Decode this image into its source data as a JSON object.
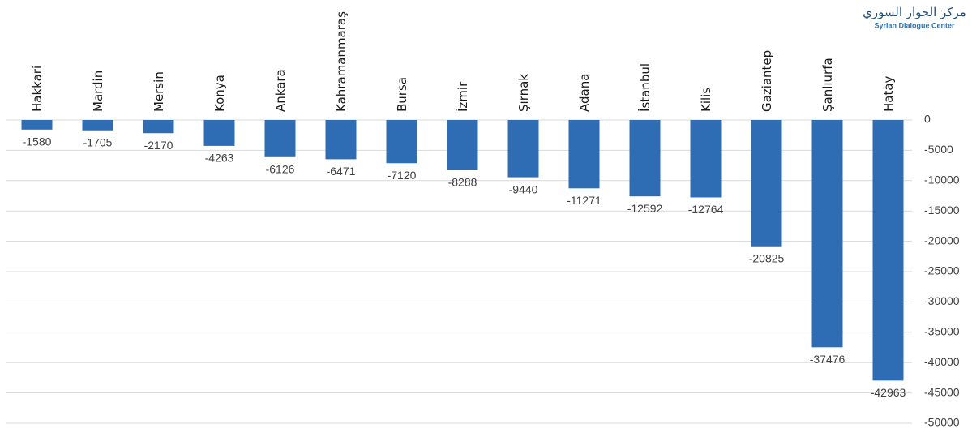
{
  "chart_data": {
    "type": "bar",
    "logo_text": [
      "مركز الحوار السوري",
      "Syrian Dialogue Center"
    ],
    "categories": [
      "Hakkari",
      "Mardin",
      "Mersin",
      "Konya",
      "Ankara",
      "Kahramanmaraş",
      "Bursa",
      "İzmir",
      "Şırnak",
      "Adana",
      "İstanbul",
      "Kilis",
      "Gaziantep",
      "Şanlıurfa",
      "Hatay"
    ],
    "values": [
      -1580,
      -1705,
      -2170,
      -4263,
      -6126,
      -6471,
      -7120,
      -8288,
      -9440,
      -11271,
      -12592,
      -12764,
      -20825,
      -37476,
      -42963
    ],
    "color": "#2e6db4",
    "ylim": [
      -50000,
      0
    ],
    "yticks": [
      0,
      -5000,
      -10000,
      -15000,
      -20000,
      -25000,
      -30000,
      -35000,
      -40000,
      -45000,
      -50000
    ],
    "grid": true,
    "y_axis_side": "right"
  }
}
